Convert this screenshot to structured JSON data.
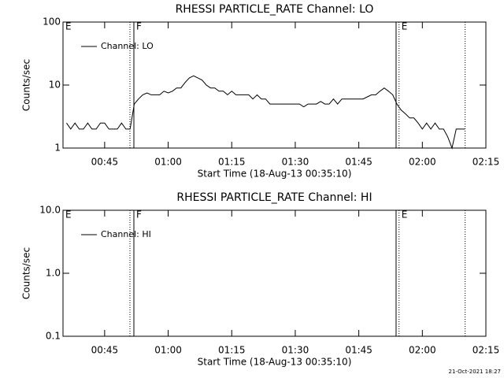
{
  "chart_data": [
    {
      "type": "line",
      "title": "RHESSI PARTICLE_RATE Channel: LO",
      "xlabel": "Start Time (18-Aug-13 00:35:10)",
      "ylabel": "Counts/sec",
      "xlim": [
        35.17,
        135
      ],
      "xticks": [
        {
          "value": 45,
          "label": "00:45"
        },
        {
          "value": 60,
          "label": "01:00"
        },
        {
          "value": 75,
          "label": "01:15"
        },
        {
          "value": 90,
          "label": "01:30"
        },
        {
          "value": 105,
          "label": "01:45"
        },
        {
          "value": 120,
          "label": "02:00"
        },
        {
          "value": 135,
          "label": "02:15"
        }
      ],
      "ylim": [
        1,
        100
      ],
      "yticks": [
        1,
        10,
        100
      ],
      "log_y": true,
      "markers": [
        {
          "x": 50.97,
          "style": "dotted"
        },
        {
          "x": 51.9,
          "style": "solid"
        },
        {
          "x": 113.8,
          "style": "solid"
        },
        {
          "x": 114.5,
          "style": "dotted"
        },
        {
          "x": 130.1,
          "style": "dotted"
        }
      ],
      "flags": [
        {
          "x": 35.17,
          "text": "E"
        },
        {
          "x": 51.9,
          "text": "F"
        },
        {
          "x": 114.5,
          "text": "E"
        }
      ],
      "series": [
        {
          "name": "Channel: LO",
          "color": "#000000",
          "x": [
            36,
            37,
            38,
            39,
            40,
            41,
            42,
            43,
            44,
            45,
            46,
            47,
            48,
            49,
            50,
            51,
            52,
            53,
            54,
            55,
            56,
            57,
            58,
            59,
            60,
            61,
            62,
            63,
            64,
            65,
            66,
            67,
            68,
            69,
            70,
            71,
            72,
            73,
            74,
            75,
            76,
            77,
            78,
            79,
            80,
            81,
            82,
            83,
            84,
            85,
            86,
            87,
            88,
            89,
            90,
            91,
            92,
            93,
            94,
            95,
            96,
            97,
            98,
            99,
            100,
            101,
            102,
            103,
            104,
            105,
            106,
            107,
            108,
            109,
            110,
            111,
            112,
            113,
            114,
            115,
            116,
            117,
            118,
            119,
            120,
            121,
            122,
            123,
            124,
            125,
            126,
            127,
            128,
            129,
            130
          ],
          "values": [
            2.5,
            2,
            2.5,
            2,
            2,
            2.5,
            2,
            2,
            2.5,
            2.5,
            2,
            2,
            2,
            2.5,
            2,
            2,
            5,
            6,
            7,
            7.5,
            7,
            7,
            7,
            8,
            7.5,
            8,
            9,
            9,
            11,
            13,
            14,
            13,
            12,
            10,
            9,
            9,
            8,
            8,
            7,
            8,
            7,
            7,
            7,
            7,
            6,
            7,
            6,
            6,
            5,
            5,
            5,
            5,
            5,
            5,
            5,
            5,
            4.5,
            5,
            5,
            5,
            5.5,
            5,
            5,
            6,
            5,
            6,
            6,
            6,
            6,
            6,
            6,
            6.5,
            7,
            7,
            8,
            9,
            8,
            7,
            5,
            4,
            3.5,
            3,
            3,
            2.5,
            2,
            2.5,
            2,
            2.5,
            2,
            2,
            1.5,
            1,
            2,
            2,
            2
          ]
        }
      ]
    },
    {
      "type": "line",
      "title": "RHESSI PARTICLE_RATE Channel: HI",
      "xlabel": "Start Time (18-Aug-13 00:35:10)",
      "ylabel": "Counts/sec",
      "xlim": [
        35.17,
        135
      ],
      "xticks": [
        {
          "value": 45,
          "label": "00:45"
        },
        {
          "value": 60,
          "label": "01:00"
        },
        {
          "value": 75,
          "label": "01:15"
        },
        {
          "value": 90,
          "label": "01:30"
        },
        {
          "value": 105,
          "label": "01:45"
        },
        {
          "value": 120,
          "label": "02:00"
        },
        {
          "value": 135,
          "label": "02:15"
        }
      ],
      "ylim": [
        0.1,
        10
      ],
      "yticks": [
        {
          "value": 0.1,
          "label": "0.1"
        },
        {
          "value": 1,
          "label": "1.0"
        },
        {
          "value": 10,
          "label": "10.0"
        }
      ],
      "log_y": true,
      "markers": [
        {
          "x": 50.97,
          "style": "dotted"
        },
        {
          "x": 51.9,
          "style": "solid"
        },
        {
          "x": 113.8,
          "style": "solid"
        },
        {
          "x": 114.5,
          "style": "dotted"
        },
        {
          "x": 130.1,
          "style": "dotted"
        }
      ],
      "flags": [
        {
          "x": 35.17,
          "text": "E"
        },
        {
          "x": 51.9,
          "text": "F"
        },
        {
          "x": 114.5,
          "text": "E"
        }
      ],
      "series": [
        {
          "name": "Channel: HI",
          "color": "#000000",
          "x": [],
          "values": []
        }
      ]
    }
  ],
  "timestamp": "21-Oct-2021 18:27"
}
